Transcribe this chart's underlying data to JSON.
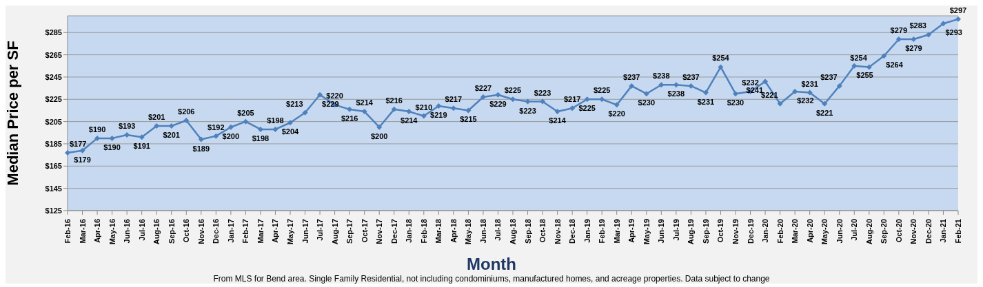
{
  "chart_data": {
    "type": "line",
    "xlabel": "Month",
    "ylabel": "Median Price per SF",
    "annotations": [
      "From MLS for Bend area.  Single Family Residential, not including condominiums, manufactured homes, and acreage properties.  Data subject to change"
    ],
    "categories": [
      "Feb-16",
      "Mar-16",
      "Apr-16",
      "May-16",
      "Jun-16",
      "Jul-16",
      "Aug-16",
      "Sep-16",
      "Oct-16",
      "Nov-16",
      "Dec-16",
      "Jan-17",
      "Feb-17",
      "Mar-17",
      "Apr-17",
      "May-17",
      "Jun-17",
      "Jul-17",
      "Aug-17",
      "Sep-17",
      "Oct-17",
      "Nov-17",
      "Dec-17",
      "Jan-18",
      "Feb-18",
      "Mar-18",
      "Apr-18",
      "May-18",
      "Jun-18",
      "Jul-18",
      "Aug-18",
      "Sep-18",
      "Oct-18",
      "Nov-18",
      "Dec-18",
      "Jan-19",
      "Feb-19",
      "Mar-19",
      "Apr-19",
      "May-19",
      "Jun-19",
      "Jul-19",
      "Aug-19",
      "Sep-19",
      "Oct-19",
      "Nov-19",
      "Dec-19",
      "Jan-20",
      "Feb-20",
      "Mar-20",
      "Apr-20",
      "May-20",
      "Jun-20",
      "Jul-20",
      "Aug-20",
      "Sep-20",
      "Oct-20",
      "Nov-20",
      "Dec-20",
      "Jan-21",
      "Feb-21"
    ],
    "values": [
      177,
      179,
      190,
      190,
      193,
      191,
      201,
      201,
      206,
      189,
      192,
      200,
      205,
      198,
      198,
      204,
      213,
      229,
      220,
      216,
      214,
      200,
      216,
      214,
      210,
      219,
      217,
      215,
      227,
      229,
      225,
      223,
      223,
      214,
      217,
      225,
      225,
      220,
      237,
      230,
      238,
      238,
      237,
      231,
      254,
      230,
      232,
      241,
      221,
      232,
      231,
      221,
      237,
      255,
      254,
      264,
      279,
      279,
      283,
      293,
      297
    ],
    "value_labels": [
      "$177",
      "$179",
      "$190",
      "$190",
      "$193",
      "$191",
      "$201",
      "$201",
      "$206",
      "$189",
      "$192",
      "$200",
      "$205",
      "$198",
      "$198",
      "$204",
      "$213",
      "$229",
      "$220",
      "$216",
      "$214",
      "$200",
      "$216",
      "$214",
      "$210",
      "$219",
      "$217",
      "$215",
      "$227",
      "$229",
      "$225",
      "$223",
      "$223",
      "$214",
      "$217",
      "$225",
      "$225",
      "$220",
      "$237",
      "$230",
      "$238",
      "$238",
      "$237",
      "$231",
      "$254",
      "$230",
      "$232",
      "$241",
      "$221",
      "$232",
      "$231",
      "$221",
      "$237",
      "$255",
      "$254",
      "$264",
      "$279",
      "$279",
      "$283",
      "$293",
      "$297"
    ],
    "color": "#4f81bd",
    "ylim": [
      125,
      300
    ],
    "yticks": [
      {
        "value": 125,
        "label": "$125"
      },
      {
        "value": 145,
        "label": "$145"
      },
      {
        "value": 165,
        "label": "$165"
      },
      {
        "value": 185,
        "label": "$185"
      },
      {
        "value": 205,
        "label": "$205"
      },
      {
        "value": 225,
        "label": "$225"
      },
      {
        "value": 245,
        "label": "$245"
      },
      {
        "value": 265,
        "label": "$265"
      },
      {
        "value": 285,
        "label": "$285"
      }
    ],
    "grid": "y",
    "marker": "diamond",
    "line_style": "solid",
    "legend": false
  }
}
